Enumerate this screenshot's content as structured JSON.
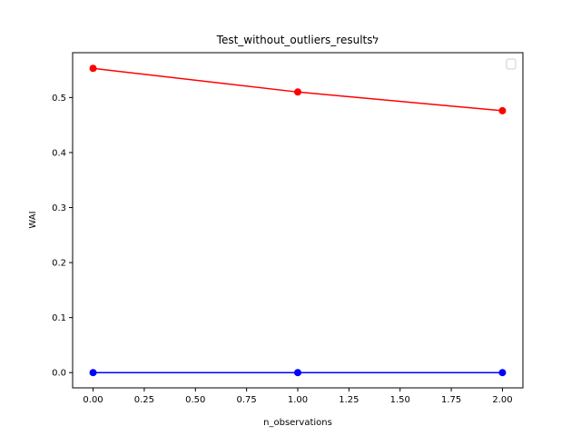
{
  "chart_data": {
    "type": "line",
    "title": "Test_without_outliers_resultsל",
    "xlabel": "n_observations",
    "ylabel": "WAI",
    "xlim": [
      -0.1,
      2.1
    ],
    "ylim": [
      -0.0277,
      0.5815
    ],
    "xticks": [
      "0.00",
      "0.25",
      "0.50",
      "0.75",
      "1.00",
      "1.25",
      "1.50",
      "1.75",
      "2.00"
    ],
    "yticks": [
      "0.0",
      "0.1",
      "0.2",
      "0.3",
      "0.4",
      "0.5"
    ],
    "grid": false,
    "legend": {
      "placement": "upper right",
      "entries": []
    },
    "series": [
      {
        "color": "#ff0000",
        "marker": "circle",
        "x": [
          0,
          1,
          2
        ],
        "y": [
          0.553,
          0.51,
          0.476
        ]
      },
      {
        "color": "#0000ff",
        "marker": "circle",
        "x": [
          0,
          1,
          2
        ],
        "y": [
          0.0,
          0.0,
          0.0
        ]
      }
    ]
  }
}
